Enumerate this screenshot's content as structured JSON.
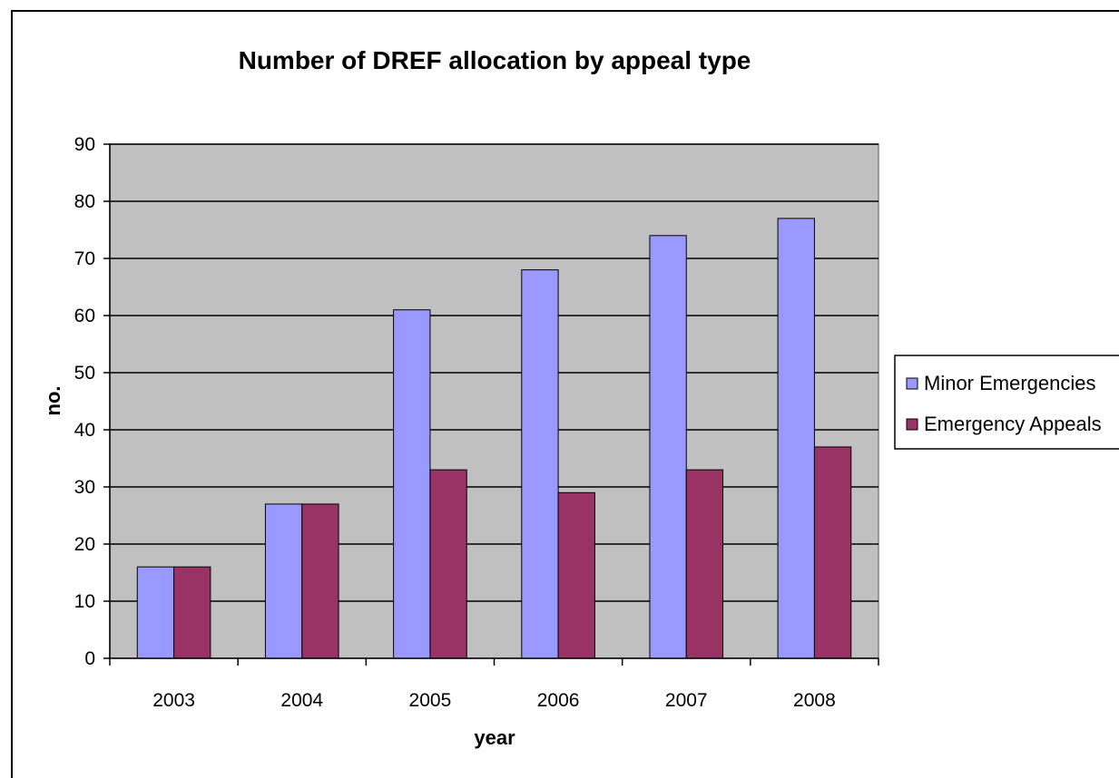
{
  "colors": {
    "plot_background": "#c0c0c0",
    "series_1": "#9999ff",
    "series_2": "#993366",
    "gridline": "#000000",
    "border": "#000000"
  },
  "chart_data": {
    "type": "bar",
    "title": "Number of DREF allocation by appeal type",
    "xlabel": "year",
    "ylabel": "no.",
    "categories": [
      "2003",
      "2004",
      "2005",
      "2006",
      "2007",
      "2008"
    ],
    "series": [
      {
        "name": "Minor Emergencies",
        "values": [
          16,
          27,
          61,
          68,
          74,
          77
        ]
      },
      {
        "name": "Emergency Appeals",
        "values": [
          16,
          27,
          33,
          29,
          33,
          37
        ]
      }
    ],
    "ylim": [
      0,
      90
    ],
    "y_ticks": [
      "0",
      "10",
      "20",
      "30",
      "40",
      "50",
      "60",
      "70",
      "80",
      "90"
    ],
    "grid": true,
    "legend_position": "right"
  }
}
